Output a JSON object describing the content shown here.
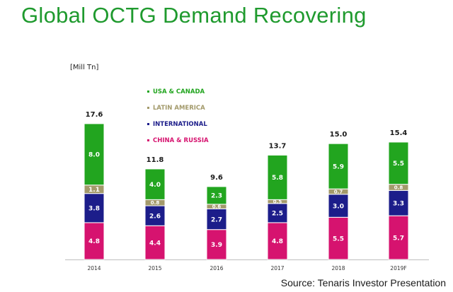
{
  "title": "Global OCTG Demand Recovering",
  "source_note": "Source: Tenaris Investor Presentation",
  "chart_data": {
    "type": "bar",
    "stacked": true,
    "unit_label": "[Mill Tn]",
    "categories": [
      "2014",
      "2015",
      "2016",
      "2017",
      "2018",
      "2019F"
    ],
    "series": [
      {
        "name": "CHINA & RUSSIA",
        "color": "#d6136f",
        "values": [
          4.8,
          4.4,
          3.9,
          4.8,
          5.5,
          5.7
        ]
      },
      {
        "name": "INTERNATIONAL",
        "color": "#1c1d8a",
        "values": [
          3.8,
          2.6,
          2.7,
          2.5,
          3.0,
          3.3
        ]
      },
      {
        "name": "LATIN AMERICA",
        "color": "#a39a6b",
        "values": [
          1.1,
          0.8,
          0.6,
          0.5,
          0.7,
          0.8
        ]
      },
      {
        "name": "USA & CANADA",
        "color": "#22a51f",
        "values": [
          8.0,
          4.0,
          2.3,
          5.8,
          5.9,
          5.5
        ]
      }
    ],
    "segment_labels": [
      [
        "4.8",
        "3.8",
        "1.1",
        "8.0"
      ],
      [
        "4.4",
        "2.6",
        "0.8",
        "4.0"
      ],
      [
        "3.9",
        "2.7",
        "0.6",
        "2.3"
      ],
      [
        "4.8",
        "2.5",
        "0.5",
        "5.8"
      ],
      [
        "5.5",
        "3.0",
        "0.7",
        "5.9"
      ],
      [
        "5.7",
        "3.3",
        "0.8",
        "5.5"
      ]
    ],
    "totals": [
      "17.6",
      "11.8",
      "9.6",
      "13.7",
      "15.0",
      "15.4"
    ],
    "legend_order": [
      "USA & CANADA",
      "LATIN AMERICA",
      "INTERNATIONAL",
      "CHINA & RUSSIA"
    ],
    "legend_placement": "top-center",
    "ylim": [
      0,
      17.6
    ],
    "grid": false
  }
}
